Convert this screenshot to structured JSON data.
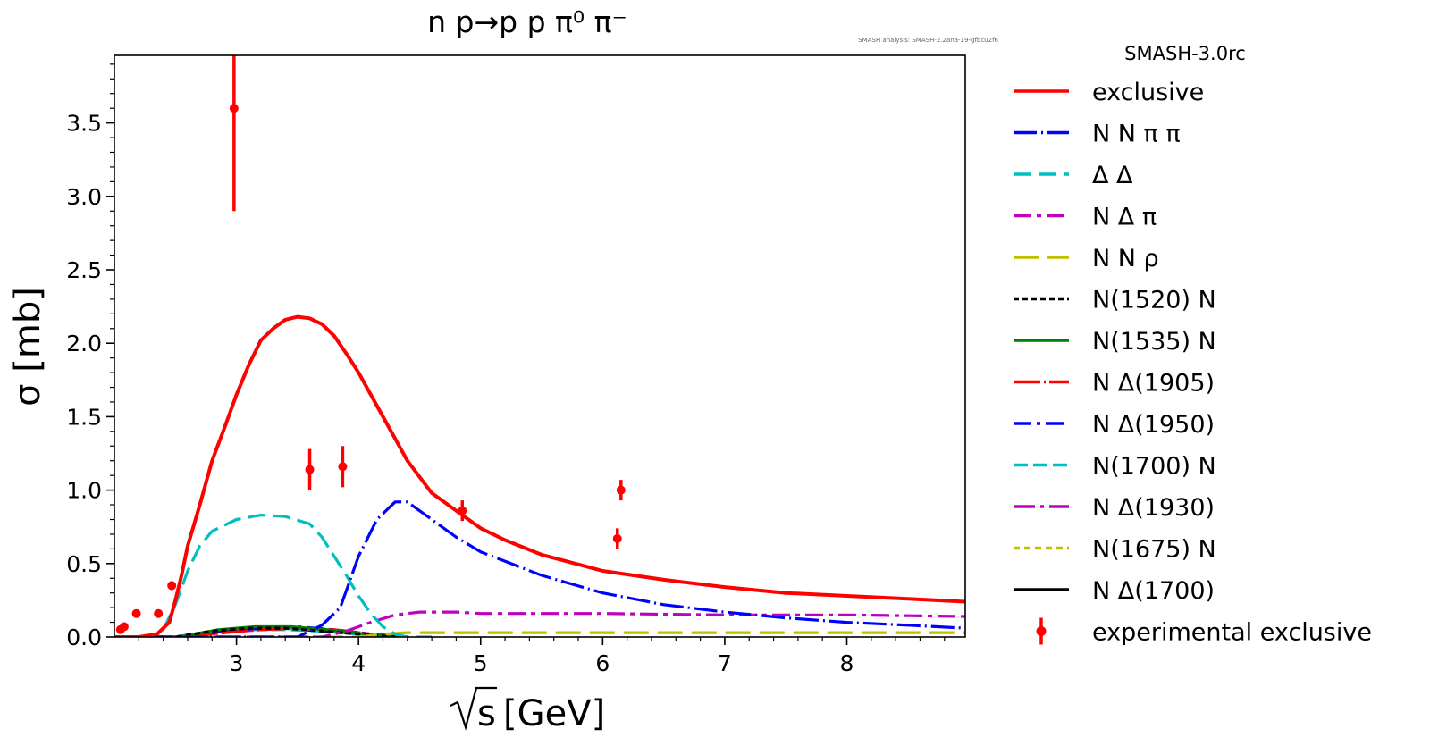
{
  "chart_data": {
    "type": "line",
    "title": "n p→p p π⁰ π⁻",
    "analysis_note": "SMASH analysis: SMASH-2.2ana-19-gfbc02f6",
    "version_label": "SMASH-3.0rc",
    "xlabel_radicand": "s",
    "xlabel_unit": "[GeV]",
    "ylabel": "σ [mb]",
    "xlim": [
      2.0,
      8.97
    ],
    "ylim": [
      0.0,
      3.96
    ],
    "x_ticks": [
      3,
      4,
      5,
      6,
      7,
      8
    ],
    "y_ticks": [
      0.0,
      0.5,
      1.0,
      1.5,
      2.0,
      2.5,
      3.0,
      3.5
    ],
    "y_tick_labels": [
      "0.0",
      "0.5",
      "1.0",
      "1.5",
      "2.0",
      "2.5",
      "3.0",
      "3.5"
    ],
    "series": [
      {
        "name": "exclusive",
        "color": "#ff0000",
        "dash": "",
        "x": [
          2.0,
          2.2,
          2.35,
          2.45,
          2.5,
          2.55,
          2.6,
          2.7,
          2.8,
          2.9,
          3.0,
          3.1,
          3.2,
          3.3,
          3.4,
          3.5,
          3.6,
          3.7,
          3.8,
          3.9,
          4.0,
          4.2,
          4.4,
          4.6,
          4.8,
          5.0,
          5.2,
          5.5,
          6.0,
          6.5,
          7.0,
          7.5,
          8.0,
          8.5,
          8.97
        ],
        "y": [
          0.0,
          0.0,
          0.02,
          0.1,
          0.25,
          0.42,
          0.62,
          0.9,
          1.2,
          1.42,
          1.65,
          1.85,
          2.02,
          2.1,
          2.16,
          2.18,
          2.17,
          2.13,
          2.05,
          1.93,
          1.8,
          1.5,
          1.2,
          0.98,
          0.86,
          0.74,
          0.66,
          0.56,
          0.45,
          0.39,
          0.34,
          0.3,
          0.28,
          0.26,
          0.24
        ]
      },
      {
        "name": "N N π π",
        "color": "#0000ff",
        "dash": "26 5 2 5",
        "x": [
          2.0,
          3.5,
          3.7,
          3.85,
          4.0,
          4.15,
          4.3,
          4.4,
          4.6,
          4.8,
          5.0,
          5.5,
          6.0,
          6.5,
          7.0,
          7.5,
          8.0,
          8.5,
          8.97
        ],
        "y": [
          0.0,
          0.0,
          0.08,
          0.2,
          0.55,
          0.8,
          0.92,
          0.92,
          0.8,
          0.68,
          0.58,
          0.42,
          0.3,
          0.22,
          0.17,
          0.13,
          0.1,
          0.08,
          0.06
        ]
      },
      {
        "name": "Δ Δ",
        "color": "#00bfbf",
        "dash": "20 8",
        "x": [
          2.0,
          2.3,
          2.4,
          2.5,
          2.6,
          2.7,
          2.8,
          3.0,
          3.2,
          3.4,
          3.6,
          3.7,
          3.8,
          3.9,
          4.0,
          4.1,
          4.2,
          4.3,
          4.4,
          4.6
        ],
        "y": [
          0.0,
          0.0,
          0.05,
          0.22,
          0.45,
          0.62,
          0.72,
          0.8,
          0.83,
          0.82,
          0.77,
          0.68,
          0.55,
          0.42,
          0.28,
          0.16,
          0.07,
          0.02,
          0.0,
          0.0
        ]
      },
      {
        "name": "N Δ π",
        "color": "#bf00bf",
        "dash": "20 6 5 6",
        "x": [
          2.0,
          3.7,
          3.9,
          4.1,
          4.3,
          4.5,
          4.8,
          5.0,
          6.0,
          7.0,
          8.0,
          8.97
        ],
        "y": [
          0.0,
          0.0,
          0.04,
          0.1,
          0.15,
          0.17,
          0.17,
          0.16,
          0.16,
          0.15,
          0.15,
          0.14
        ]
      },
      {
        "name": "N N ρ",
        "color": "#bfbf00",
        "dash": "28 10",
        "x": [
          2.0,
          4.0,
          4.2,
          4.4,
          5.0,
          6.0,
          7.0,
          8.0,
          8.97
        ],
        "y": [
          0.0,
          0.0,
          0.02,
          0.03,
          0.03,
          0.03,
          0.03,
          0.03,
          0.03
        ]
      },
      {
        "name": "N(1520) N",
        "color": "#000000",
        "dash": "6 4",
        "x": [
          2.0,
          2.5,
          2.8,
          3.1,
          3.4,
          3.7,
          4.0,
          4.3
        ],
        "y": [
          0.0,
          0.0,
          0.04,
          0.06,
          0.06,
          0.04,
          0.02,
          0.0
        ]
      },
      {
        "name": "N(1535) N",
        "color": "#008000",
        "dash": "",
        "x": [
          2.0,
          2.55,
          2.85,
          3.15,
          3.45,
          3.75,
          4.05,
          4.35
        ],
        "y": [
          0.0,
          0.0,
          0.05,
          0.07,
          0.07,
          0.05,
          0.02,
          0.0
        ]
      },
      {
        "name": "N Δ(1905)",
        "color": "#ff0000",
        "dash": "30 4 2 4",
        "x": [
          2.0,
          2.6,
          2.9,
          3.2,
          3.5,
          3.8,
          4.1,
          4.4
        ],
        "y": [
          0.0,
          0.0,
          0.03,
          0.05,
          0.06,
          0.05,
          0.02,
          0.0
        ]
      },
      {
        "name": "N Δ(1950)",
        "color": "#0000ff",
        "dash": "20 6 4 6",
        "x": [
          2.0,
          2.6,
          2.9,
          3.2,
          3.5,
          3.8,
          4.1,
          4.4
        ],
        "y": [
          0.0,
          0.0,
          0.04,
          0.06,
          0.07,
          0.05,
          0.02,
          0.0
        ]
      },
      {
        "name": "N(1700) N",
        "color": "#00bfbf",
        "dash": "16 6",
        "x": [
          2.0,
          2.5,
          2.8,
          3.1,
          3.4,
          3.7,
          4.0,
          4.3
        ],
        "y": [
          0.0,
          0.0,
          0.03,
          0.05,
          0.05,
          0.04,
          0.02,
          0.0
        ]
      },
      {
        "name": "N Δ(1930)",
        "color": "#bf00bf",
        "dash": "24 6 4 6",
        "x": [
          2.0,
          2.6,
          2.9,
          3.2,
          3.5,
          3.8,
          4.1,
          4.4
        ],
        "y": [
          0.0,
          0.0,
          0.03,
          0.05,
          0.06,
          0.05,
          0.02,
          0.0
        ]
      },
      {
        "name": "N(1675) N",
        "color": "#bfbf00",
        "dash": "7 5",
        "x": [
          2.0,
          2.5,
          2.8,
          3.1,
          3.4,
          3.7,
          4.0,
          4.3
        ],
        "y": [
          0.0,
          0.0,
          0.03,
          0.05,
          0.06,
          0.05,
          0.02,
          0.0
        ]
      },
      {
        "name": "N Δ(1700)",
        "color": "#000000",
        "dash": "",
        "x": [
          2.0,
          2.5,
          2.8,
          3.1,
          3.4,
          3.7,
          4.0,
          4.3
        ],
        "y": [
          0.0,
          0.0,
          0.04,
          0.06,
          0.06,
          0.04,
          0.02,
          0.0
        ]
      }
    ],
    "experimental": {
      "name": "experimental exclusive",
      "color": "#ff0000",
      "points": [
        {
          "x": 2.05,
          "y": 0.05,
          "err": 0.02
        },
        {
          "x": 2.08,
          "y": 0.07,
          "err": 0.02
        },
        {
          "x": 2.18,
          "y": 0.16,
          "err": 0.02
        },
        {
          "x": 2.36,
          "y": 0.16,
          "err": 0.02
        },
        {
          "x": 2.47,
          "y": 0.35,
          "err": 0.03
        },
        {
          "x": 2.98,
          "y": 3.6,
          "err": 0.7
        },
        {
          "x": 3.6,
          "y": 1.14,
          "err": 0.14
        },
        {
          "x": 3.87,
          "y": 1.16,
          "err": 0.14
        },
        {
          "x": 4.85,
          "y": 0.86,
          "err": 0.07
        },
        {
          "x": 6.12,
          "y": 0.67,
          "err": 0.07
        },
        {
          "x": 6.15,
          "y": 1.0,
          "err": 0.07
        }
      ]
    }
  }
}
